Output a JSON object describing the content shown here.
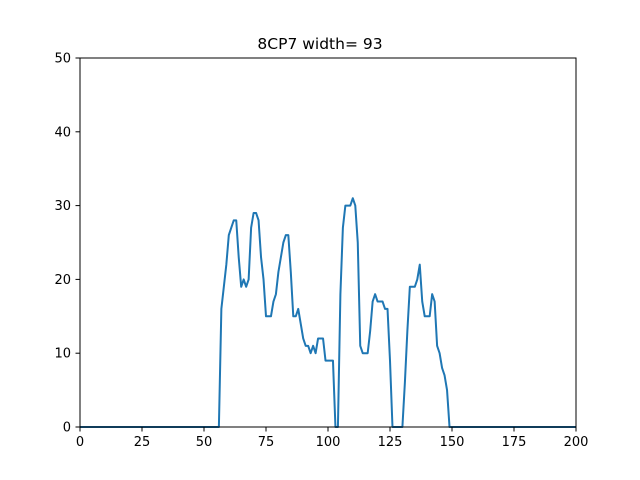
{
  "chart_data": {
    "type": "line",
    "title": "8CP7 width= 93",
    "xlabel": "",
    "ylabel": "",
    "xlim": [
      0,
      200
    ],
    "ylim": [
      0,
      50
    ],
    "xticks": [
      0,
      25,
      50,
      75,
      100,
      125,
      150,
      175,
      200
    ],
    "yticks": [
      0,
      10,
      20,
      30,
      40,
      50
    ],
    "xtick_labels": [
      "0",
      "25",
      "50",
      "75",
      "100",
      "125",
      "150",
      "175",
      "200"
    ],
    "ytick_labels": [
      "0",
      "10",
      "20",
      "30",
      "40",
      "50"
    ],
    "grid": false,
    "series": [
      {
        "color": "#1f77b4",
        "x": [
          0,
          56,
          57,
          58,
          59,
          60,
          61,
          62,
          63,
          64,
          65,
          66,
          67,
          68,
          69,
          70,
          71,
          72,
          73,
          74,
          75,
          76,
          77,
          78,
          79,
          80,
          81,
          82,
          83,
          84,
          85,
          86,
          87,
          88,
          89,
          90,
          91,
          92,
          93,
          94,
          95,
          96,
          97,
          98,
          99,
          100,
          101,
          102,
          103,
          104,
          105,
          106,
          107,
          108,
          109,
          110,
          111,
          112,
          113,
          114,
          115,
          116,
          117,
          118,
          119,
          120,
          121,
          122,
          123,
          124,
          125,
          126,
          127,
          128,
          129,
          130,
          131,
          132,
          133,
          134,
          135,
          136,
          137,
          138,
          139,
          140,
          141,
          142,
          143,
          144,
          145,
          146,
          147,
          148,
          149,
          200
        ],
        "y": [
          0,
          0,
          16,
          19,
          22,
          26,
          27,
          28,
          28,
          23,
          19,
          20,
          19,
          20,
          27,
          29,
          29,
          28,
          23,
          20,
          15,
          15,
          15,
          17,
          18,
          21,
          23,
          25,
          26,
          26,
          21,
          15,
          15,
          16,
          14,
          12,
          11,
          11,
          10,
          11,
          10,
          12,
          12,
          12,
          9,
          9,
          9,
          9,
          0,
          0,
          18,
          27,
          30,
          30,
          30,
          31,
          30,
          25,
          11,
          10,
          10,
          10,
          13,
          17,
          18,
          17,
          17,
          17,
          16,
          16,
          9,
          0,
          0,
          0,
          0,
          0,
          6,
          13,
          19,
          19,
          19,
          20,
          22,
          17,
          15,
          15,
          15,
          18,
          17,
          11,
          10,
          8,
          7,
          5,
          0,
          0
        ]
      }
    ]
  }
}
